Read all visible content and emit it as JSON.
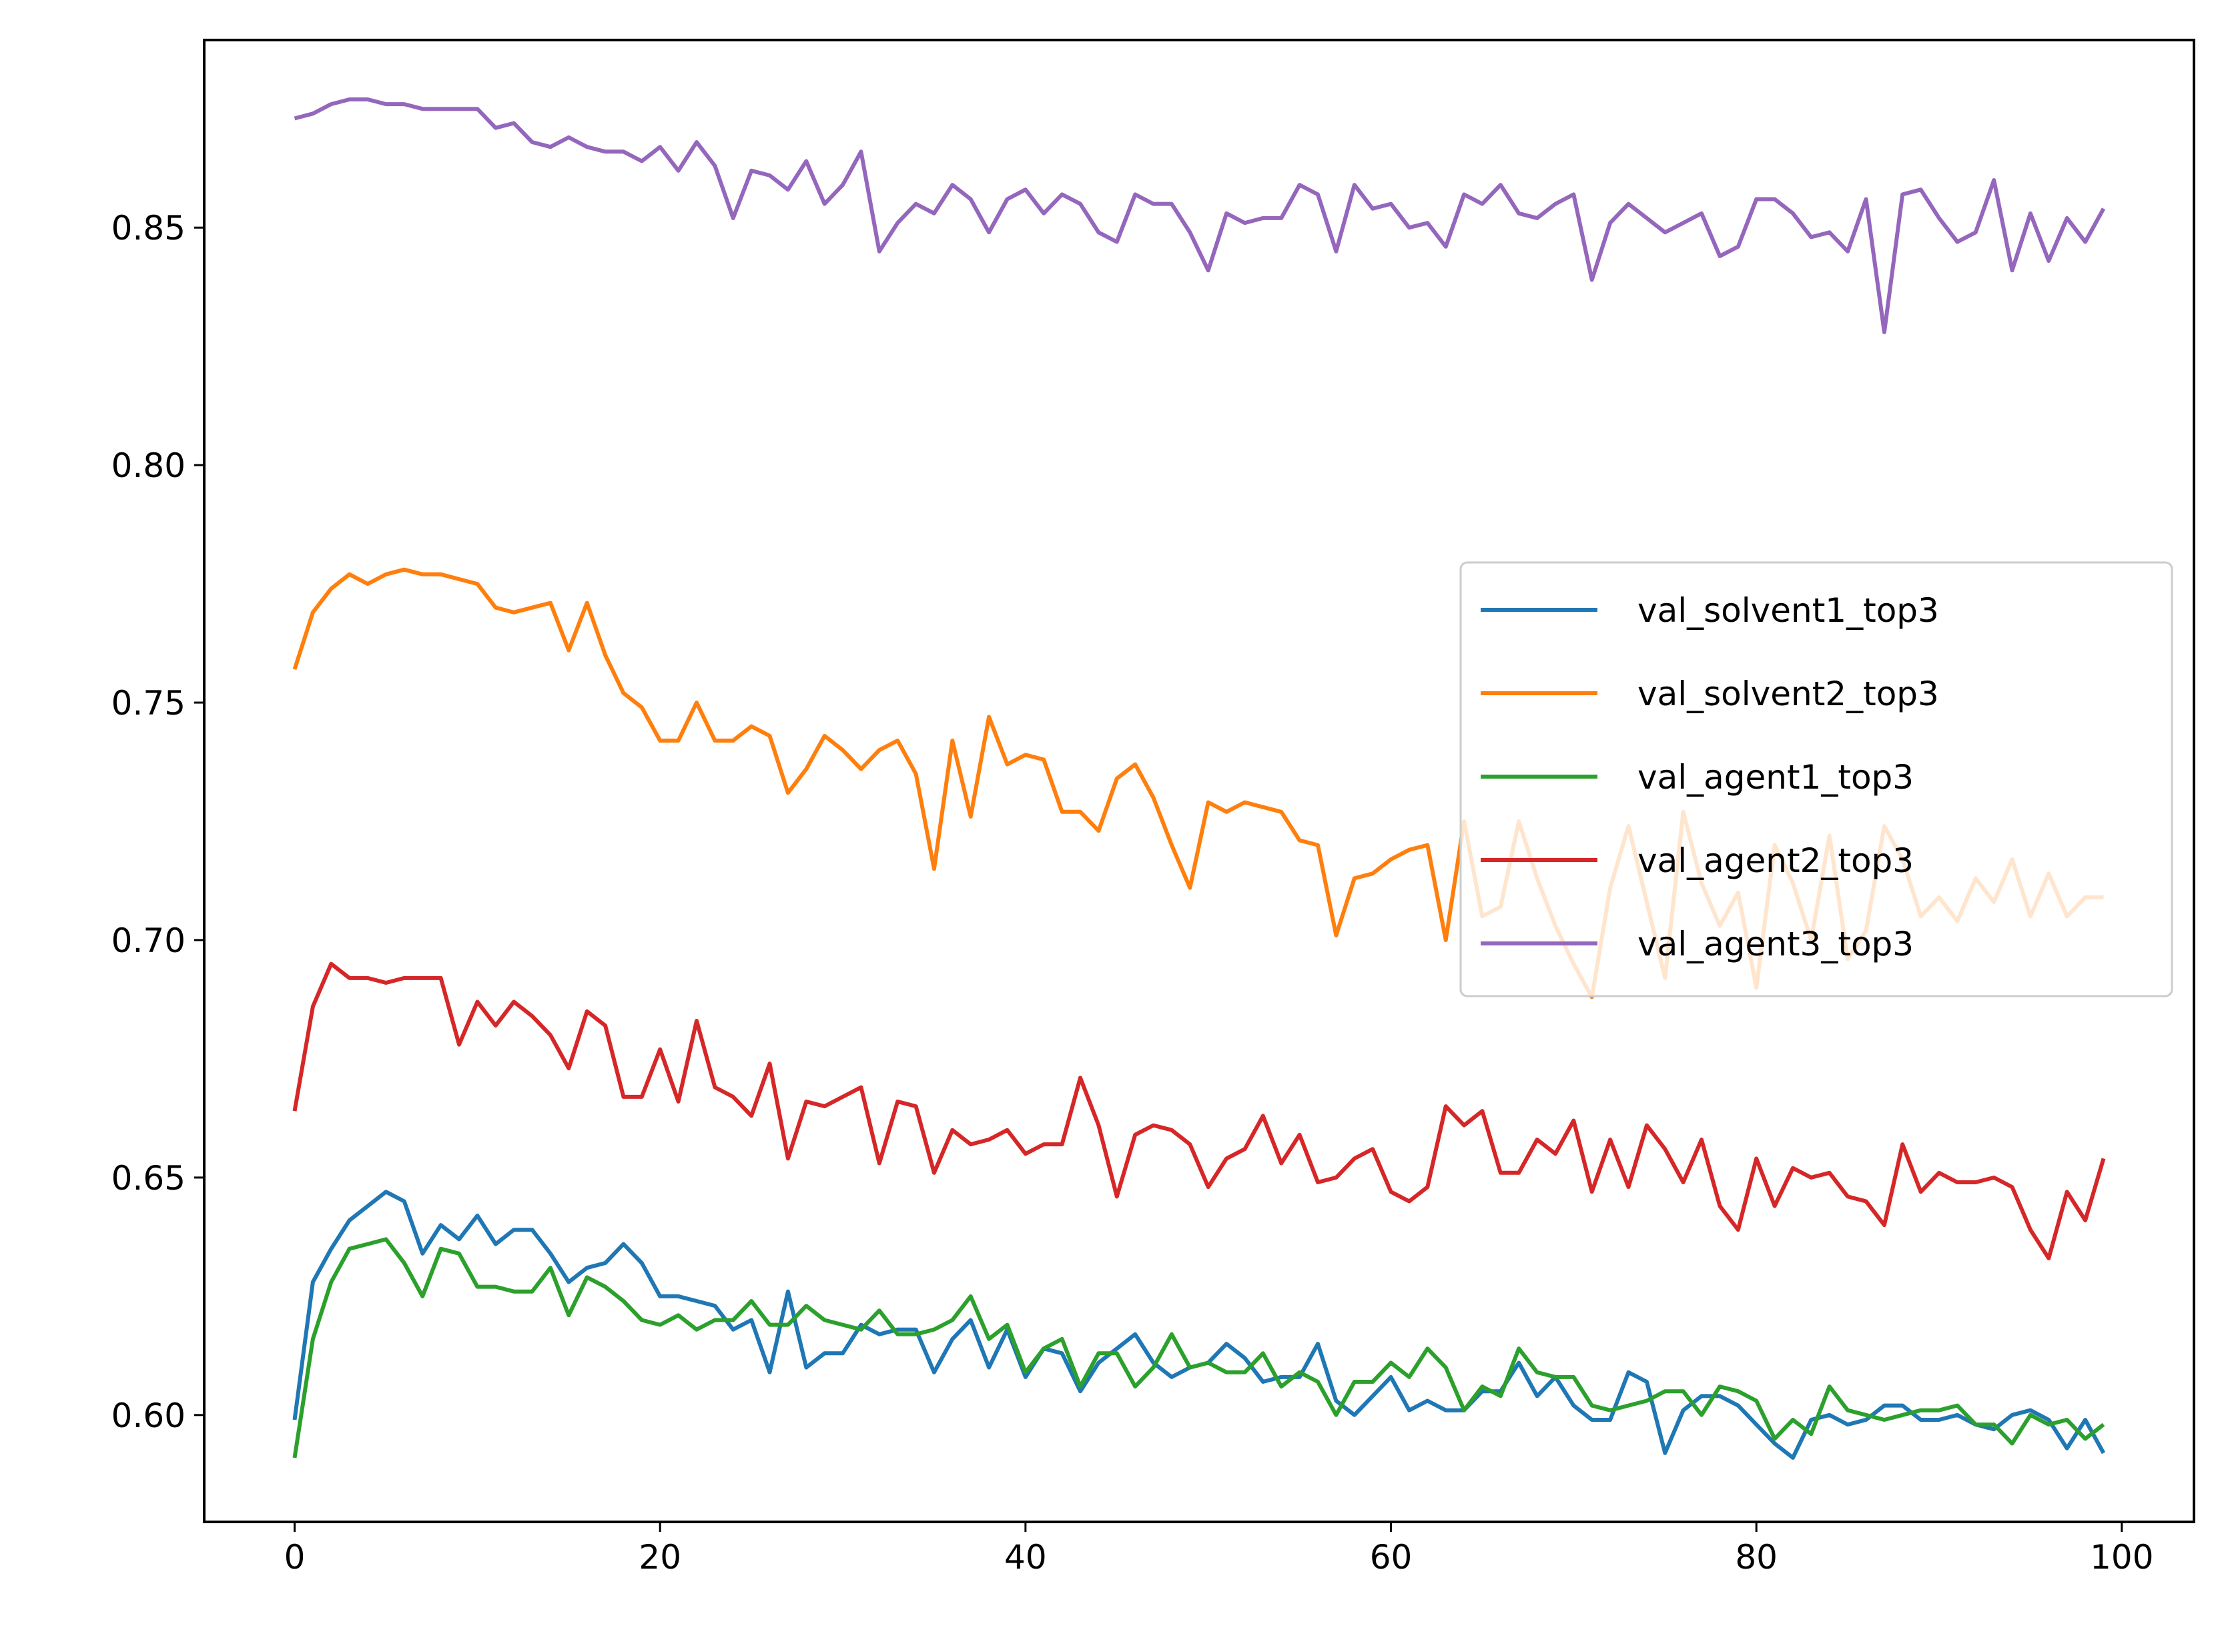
{
  "chart_data": {
    "type": "line",
    "title": "",
    "xlabel": "",
    "ylabel": "",
    "xlim": [
      -4.95,
      103.95
    ],
    "ylim": [
      0.5775,
      0.8895
    ],
    "xticks": [
      0,
      20,
      40,
      60,
      80,
      100
    ],
    "xtick_labels": [
      "0",
      "20",
      "40",
      "60",
      "80",
      "100"
    ],
    "yticks": [
      0.6,
      0.65,
      0.7,
      0.75,
      0.8,
      0.85
    ],
    "ytick_labels": [
      "0.60",
      "0.65",
      "0.70",
      "0.75",
      "0.80",
      "0.85"
    ],
    "grid": false,
    "legend_position": "center-right",
    "x": [
      0,
      1,
      2,
      3,
      4,
      5,
      6,
      7,
      8,
      9,
      10,
      11,
      12,
      13,
      14,
      15,
      16,
      17,
      18,
      19,
      20,
      21,
      22,
      23,
      24,
      25,
      26,
      27,
      28,
      29,
      30,
      31,
      32,
      33,
      34,
      35,
      36,
      37,
      38,
      39,
      40,
      41,
      42,
      43,
      44,
      45,
      46,
      47,
      48,
      49,
      50,
      51,
      52,
      53,
      54,
      55,
      56,
      57,
      58,
      59,
      60,
      61,
      62,
      63,
      64,
      65,
      66,
      67,
      68,
      69,
      70,
      71,
      72,
      73,
      74,
      75,
      76,
      77,
      78,
      79,
      80,
      81,
      82,
      83,
      84,
      85,
      86,
      87,
      88,
      89,
      90,
      91,
      92,
      93,
      94,
      95,
      96,
      97,
      98,
      99
    ],
    "series": [
      {
        "name": "val_solvent1_top3",
        "color": "#1f77b4",
        "values": [
          0.599,
          0.628,
          0.635,
          0.641,
          0.644,
          0.647,
          0.645,
          0.634,
          0.64,
          0.637,
          0.642,
          0.636,
          0.639,
          0.639,
          0.634,
          0.628,
          0.631,
          0.632,
          0.636,
          0.632,
          0.625,
          0.625,
          0.624,
          0.623,
          0.618,
          0.62,
          0.609,
          0.626,
          0.61,
          0.613,
          0.613,
          0.619,
          0.617,
          0.618,
          0.618,
          0.609,
          0.616,
          0.62,
          0.61,
          0.618,
          0.608,
          0.614,
          0.613,
          0.605,
          0.611,
          0.614,
          0.617,
          0.611,
          0.608,
          0.61,
          0.611,
          0.615,
          0.612,
          0.607,
          0.608,
          0.608,
          0.615,
          0.603,
          0.6,
          0.604,
          0.608,
          0.601,
          0.603,
          0.601,
          0.601,
          0.605,
          0.605,
          0.611,
          0.604,
          0.608,
          0.602,
          0.599,
          0.599,
          0.609,
          0.607,
          0.592,
          0.601,
          0.604,
          0.604,
          0.602,
          0.598,
          0.594,
          0.591,
          0.599,
          0.6,
          0.598,
          0.599,
          0.602,
          0.602,
          0.599,
          0.599,
          0.6,
          0.598,
          0.597,
          0.6,
          0.601,
          0.599,
          0.593,
          0.599,
          0.592
        ]
      },
      {
        "name": "val_solvent2_top3",
        "color": "#ff7f0e",
        "values": [
          0.757,
          0.769,
          0.774,
          0.777,
          0.775,
          0.777,
          0.778,
          0.777,
          0.777,
          0.776,
          0.775,
          0.77,
          0.769,
          0.77,
          0.771,
          0.761,
          0.771,
          0.76,
          0.752,
          0.749,
          0.742,
          0.742,
          0.75,
          0.742,
          0.742,
          0.745,
          0.743,
          0.731,
          0.736,
          0.743,
          0.74,
          0.736,
          0.74,
          0.742,
          0.735,
          0.715,
          0.742,
          0.726,
          0.747,
          0.737,
          0.739,
          0.738,
          0.727,
          0.727,
          0.723,
          0.734,
          0.737,
          0.73,
          0.72,
          0.711,
          0.729,
          0.727,
          0.729,
          0.728,
          0.727,
          0.721,
          0.72,
          0.701,
          0.713,
          0.714,
          0.717,
          0.719,
          0.72,
          0.7,
          0.725,
          0.705,
          0.707,
          0.725,
          0.713,
          0.703,
          0.695,
          0.688,
          0.711,
          0.724,
          0.708,
          0.692,
          0.727,
          0.712,
          0.703,
          0.71,
          0.69,
          0.72,
          0.712,
          0.7,
          0.722,
          0.696,
          0.702,
          0.724,
          0.717,
          0.705,
          0.709,
          0.704,
          0.713,
          0.708,
          0.717,
          0.705,
          0.714,
          0.705,
          0.709,
          0.709
        ]
      },
      {
        "name": "val_agent1_top3",
        "color": "#2ca02c",
        "values": [
          0.591,
          0.616,
          0.628,
          0.635,
          0.636,
          0.637,
          0.632,
          0.625,
          0.635,
          0.634,
          0.627,
          0.627,
          0.626,
          0.626,
          0.631,
          0.621,
          0.629,
          0.627,
          0.624,
          0.62,
          0.619,
          0.621,
          0.618,
          0.62,
          0.62,
          0.624,
          0.619,
          0.619,
          0.623,
          0.62,
          0.619,
          0.618,
          0.622,
          0.617,
          0.617,
          0.618,
          0.62,
          0.625,
          0.616,
          0.619,
          0.609,
          0.614,
          0.616,
          0.606,
          0.613,
          0.613,
          0.606,
          0.61,
          0.617,
          0.61,
          0.611,
          0.609,
          0.609,
          0.613,
          0.606,
          0.609,
          0.607,
          0.6,
          0.607,
          0.607,
          0.611,
          0.608,
          0.614,
          0.61,
          0.601,
          0.606,
          0.604,
          0.614,
          0.609,
          0.608,
          0.608,
          0.602,
          0.601,
          0.602,
          0.603,
          0.605,
          0.605,
          0.6,
          0.606,
          0.605,
          0.603,
          0.595,
          0.599,
          0.596,
          0.606,
          0.601,
          0.6,
          0.599,
          0.6,
          0.601,
          0.601,
          0.602,
          0.598,
          0.598,
          0.594,
          0.6,
          0.598,
          0.599,
          0.595,
          0.598
        ]
      },
      {
        "name": "val_agent2_top3",
        "color": "#d62728",
        "values": [
          0.664,
          0.686,
          0.695,
          0.692,
          0.692,
          0.691,
          0.692,
          0.692,
          0.692,
          0.678,
          0.687,
          0.682,
          0.687,
          0.684,
          0.68,
          0.673,
          0.685,
          0.682,
          0.667,
          0.667,
          0.677,
          0.666,
          0.683,
          0.669,
          0.667,
          0.663,
          0.674,
          0.654,
          0.666,
          0.665,
          0.667,
          0.669,
          0.653,
          0.666,
          0.665,
          0.651,
          0.66,
          0.657,
          0.658,
          0.66,
          0.655,
          0.657,
          0.657,
          0.671,
          0.661,
          0.646,
          0.659,
          0.661,
          0.66,
          0.657,
          0.648,
          0.654,
          0.656,
          0.663,
          0.653,
          0.659,
          0.649,
          0.65,
          0.654,
          0.656,
          0.647,
          0.645,
          0.648,
          0.665,
          0.661,
          0.664,
          0.651,
          0.651,
          0.658,
          0.655,
          0.662,
          0.647,
          0.658,
          0.648,
          0.661,
          0.656,
          0.649,
          0.658,
          0.644,
          0.639,
          0.654,
          0.644,
          0.652,
          0.65,
          0.651,
          0.646,
          0.645,
          0.64,
          0.657,
          0.647,
          0.651,
          0.649,
          0.649,
          0.65,
          0.648,
          0.639,
          0.633,
          0.647,
          0.641,
          0.654
        ]
      },
      {
        "name": "val_agent3_top3",
        "color": "#9467bd",
        "values": [
          0.873,
          0.874,
          0.876,
          0.877,
          0.877,
          0.876,
          0.876,
          0.875,
          0.875,
          0.875,
          0.875,
          0.871,
          0.872,
          0.868,
          0.867,
          0.869,
          0.867,
          0.866,
          0.866,
          0.864,
          0.867,
          0.862,
          0.868,
          0.863,
          0.852,
          0.862,
          0.861,
          0.858,
          0.864,
          0.855,
          0.859,
          0.866,
          0.845,
          0.851,
          0.855,
          0.853,
          0.859,
          0.856,
          0.849,
          0.856,
          0.858,
          0.853,
          0.857,
          0.855,
          0.849,
          0.847,
          0.857,
          0.855,
          0.855,
          0.849,
          0.841,
          0.853,
          0.851,
          0.852,
          0.852,
          0.859,
          0.857,
          0.845,
          0.859,
          0.854,
          0.855,
          0.85,
          0.851,
          0.846,
          0.857,
          0.855,
          0.859,
          0.853,
          0.852,
          0.855,
          0.857,
          0.839,
          0.851,
          0.855,
          0.852,
          0.849,
          0.851,
          0.853,
          0.844,
          0.846,
          0.856,
          0.856,
          0.853,
          0.848,
          0.849,
          0.845,
          0.856,
          0.828,
          0.857,
          0.858,
          0.852,
          0.847,
          0.849,
          0.86,
          0.841,
          0.853,
          0.843,
          0.852,
          0.847,
          0.854
        ]
      }
    ]
  }
}
